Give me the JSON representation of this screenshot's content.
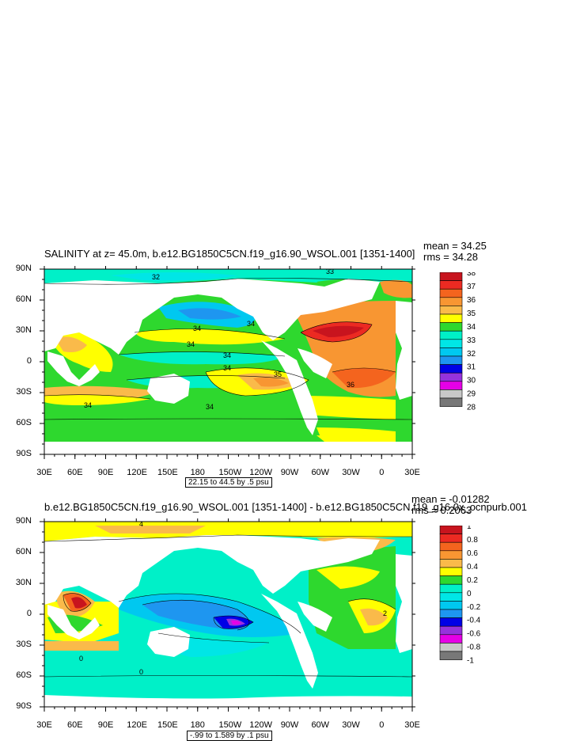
{
  "chart_data": [
    {
      "type": "heatmap",
      "title": "SALINITY at z=  45.0m, b.e12.BG1850C5CN.f19_g16.90_WSOL.001 [1351-1400]",
      "stats": {
        "mean": "mean = 34.25",
        "rms": "rms = 34.28"
      },
      "x_ticks": [
        "30E",
        "60E",
        "90E",
        "120E",
        "150E",
        "180",
        "150W",
        "120W",
        "90W",
        "60W",
        "30W",
        "0",
        "30E"
      ],
      "y_ticks": [
        "90N",
        "60N",
        "30N",
        "0",
        "30S",
        "60S",
        "90S"
      ],
      "colorbar_levels": [
        "38",
        "37",
        "36",
        "35",
        "34",
        "33",
        "32",
        "31",
        "30",
        "29",
        "28"
      ],
      "colorbar_colors": [
        "#c8141e",
        "#ec2a22",
        "#f4641e",
        "#f89632",
        "#faba4a",
        "#ffff00",
        "#2ed82e",
        "#00f0c8",
        "#00e6e6",
        "#00c8f0",
        "#1e96f0",
        "#0000e6",
        "#9632dc",
        "#e600e6",
        "#c8c8c8",
        "#787878"
      ],
      "contour_labels": [
        "32",
        "33",
        "34",
        "34",
        "34",
        "34",
        "34",
        "35",
        "36",
        "34",
        "34"
      ],
      "info": "22.15 to 44.5 by .5 psu",
      "zlim": [
        28,
        38
      ]
    },
    {
      "type": "heatmap",
      "title": "b.e12.BG1850C5CN.f19_g16.90_WSOL.001 [1351-1400] - b.e12.BG1850C5CN.f19_g16.0x_ocnpurb.001",
      "stats": {
        "mean": "mean = -0.01282",
        "rms": "rms = 0.2063"
      },
      "x_ticks": [
        "30E",
        "60E",
        "90E",
        "120E",
        "150E",
        "180",
        "150W",
        "120W",
        "90W",
        "60W",
        "30W",
        "0",
        "30E"
      ],
      "y_ticks": [
        "90N",
        "60N",
        "30N",
        "0",
        "30S",
        "60S",
        "90S"
      ],
      "colorbar_levels": [
        "1",
        "0.8",
        "0.6",
        "0.4",
        "0.2",
        "0",
        "-0.2",
        "-0.4",
        "-0.6",
        "-0.8",
        "-1"
      ],
      "colorbar_colors": [
        "#c8141e",
        "#ec2a22",
        "#f4641e",
        "#f89632",
        "#faba4a",
        "#ffff00",
        "#2ed82e",
        "#00f0c8",
        "#00e6e6",
        "#00c8f0",
        "#1e96f0",
        "#0000e6",
        "#9632dc",
        "#e600e6",
        "#c8c8c8",
        "#787878"
      ],
      "contour_labels": [
        "4",
        "2",
        "0",
        "0"
      ],
      "info": "-.99 to 1.589 by .1 psu",
      "zlim": [
        -1,
        1
      ]
    }
  ]
}
